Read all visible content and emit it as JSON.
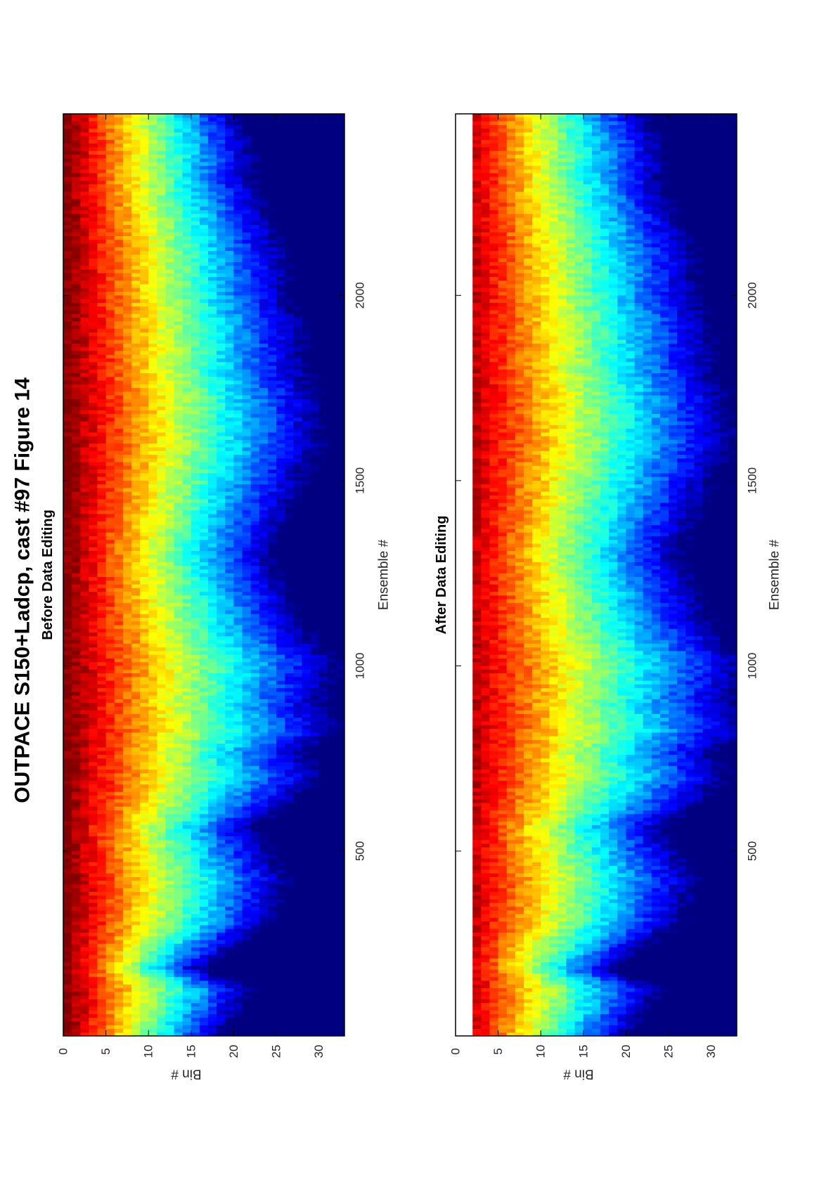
{
  "figure": {
    "title": "OUTPACE S150+Ladcp, cast #97  Figure 14"
  },
  "chart_data": [
    {
      "type": "heatmap",
      "title": "Before Data Editing",
      "xlabel": "Ensemble #",
      "ylabel": "Bin #",
      "xlim": [
        1,
        2490
      ],
      "ylim": [
        0,
        33
      ],
      "xticks": [
        500,
        1000,
        1500,
        2000
      ],
      "yticks": [
        0,
        5,
        10,
        15,
        20,
        25,
        30
      ],
      "colormap": "jet",
      "orientation": "rotated 90 degrees counter-clockwise",
      "echo_depth_profile": {
        "description_units": "bin at which signal decays to mid-colormap",
        "ensembles": [
          1,
          60,
          120,
          180,
          240,
          300,
          420,
          560,
          620,
          700,
          760,
          820,
          900,
          1000,
          1100,
          1200,
          1300,
          1400,
          1500,
          1600,
          1700,
          1800,
          1900,
          2000,
          2100,
          2200,
          2300,
          2400,
          2490
        ],
        "decay_bin": [
          9,
          10,
          11,
          8,
          10,
          12,
          13,
          11,
          13,
          15,
          14,
          16,
          15,
          16,
          14,
          13,
          12,
          13,
          14,
          15,
          15,
          14,
          14,
          13,
          13,
          12,
          11,
          11,
          10
        ]
      }
    },
    {
      "type": "heatmap",
      "title": "After Data Editing",
      "xlabel": "Ensemble #",
      "ylabel": "Bin #",
      "xlim": [
        1,
        2490
      ],
      "ylim": [
        0,
        33
      ],
      "xticks": [
        500,
        1000,
        1500,
        2000
      ],
      "yticks": [
        0,
        5,
        10,
        15,
        20,
        25,
        30
      ],
      "colormap": "jet",
      "orientation": "rotated 90 degrees counter-clockwise",
      "blank_bins_top": [
        0,
        1
      ],
      "echo_depth_profile": {
        "description_units": "bin at which signal decays to mid-colormap",
        "ensembles": [
          1,
          60,
          120,
          180,
          240,
          300,
          420,
          560,
          620,
          700,
          760,
          820,
          900,
          1000,
          1100,
          1200,
          1300,
          1400,
          1500,
          1600,
          1700,
          1800,
          1900,
          2000,
          2100,
          2200,
          2300,
          2400,
          2490
        ],
        "decay_bin": [
          10,
          11,
          12,
          9,
          11,
          13,
          14,
          12,
          14,
          16,
          15,
          17,
          16,
          17,
          15,
          14,
          13,
          14,
          15,
          16,
          16,
          15,
          15,
          14,
          14,
          13,
          12,
          12,
          11
        ]
      }
    }
  ]
}
